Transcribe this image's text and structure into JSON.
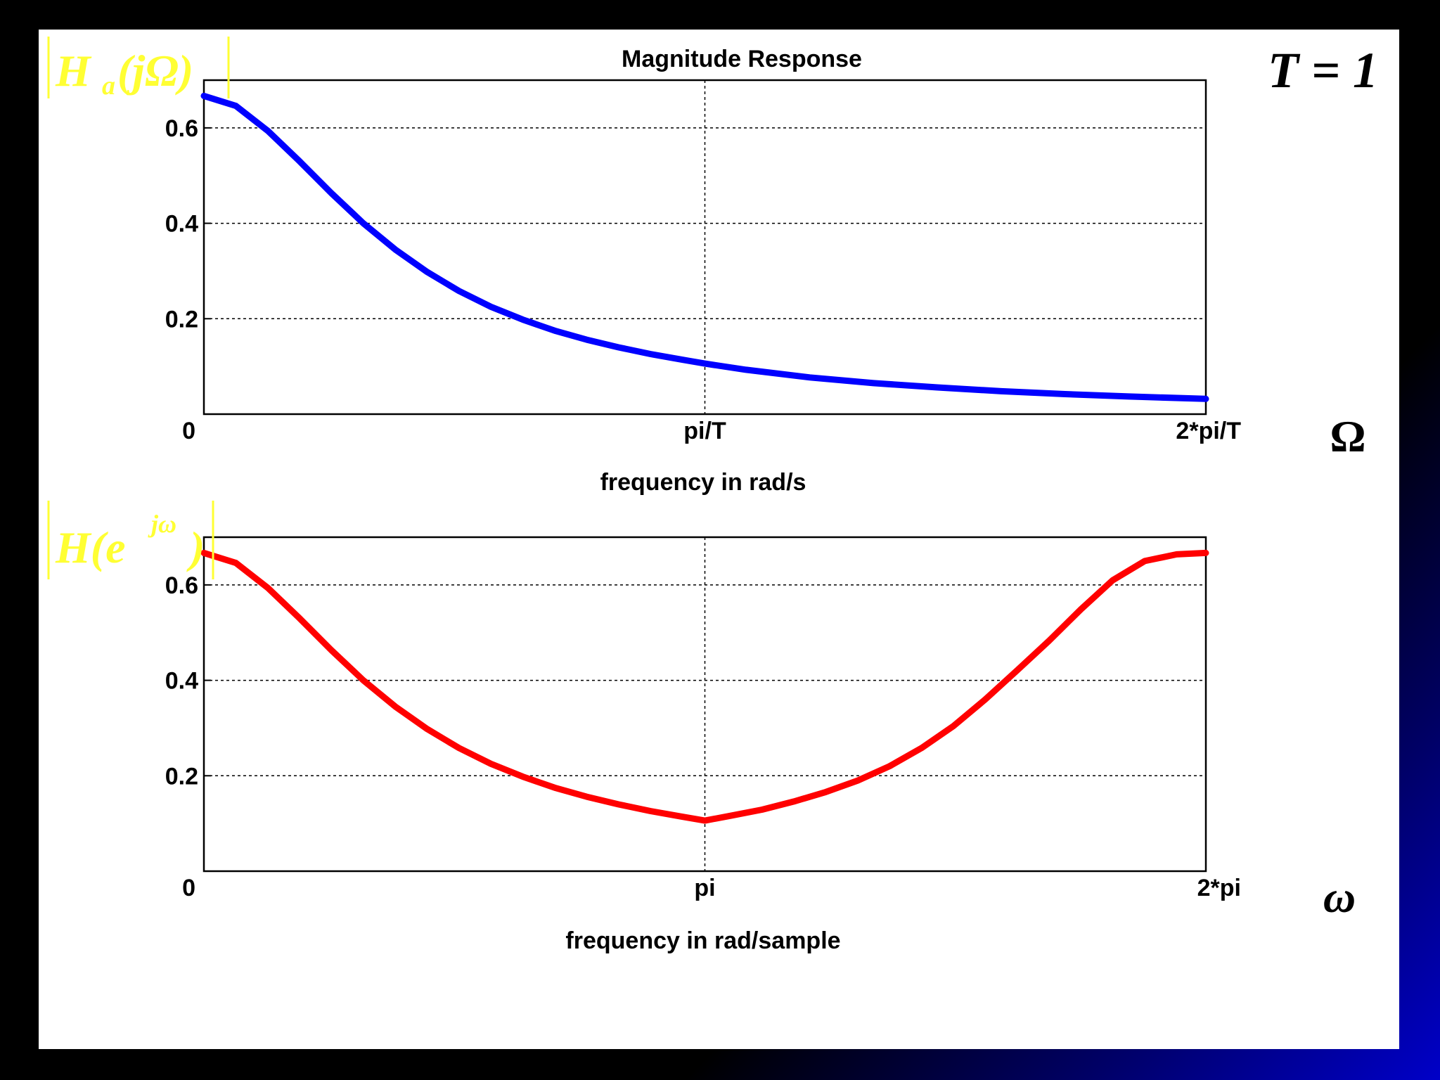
{
  "annotations": {
    "top_ylabel": {
      "main": "H",
      "sub": "a",
      "rest": "(jΩ)"
    },
    "bottom_ylabel": {
      "main": "H(e",
      "sup": "jω",
      "close": ")"
    },
    "t_param": "T = 1",
    "top_var": "Ω",
    "bottom_var": "ω"
  },
  "colors": {
    "top_series": "#0000ff",
    "bottom_series": "#ff0000",
    "annotation": "#ffff33",
    "grid": "#000000"
  },
  "chart_data": [
    {
      "type": "line",
      "title": "Magnitude Response",
      "xlabel": "frequency in rad/s",
      "ylabel": "",
      "xlim": [
        0,
        6.2832
      ],
      "ylim": [
        0,
        0.7
      ],
      "grid": true,
      "xticks": [
        0,
        3.1416,
        6.2832
      ],
      "xtick_labels": [
        "0",
        "pi/T",
        "2*pi/T"
      ],
      "yticks": [
        0,
        0.2,
        0.4,
        0.6
      ],
      "ytick_labels": [
        "0",
        "0.2",
        "0.4",
        "0.6"
      ],
      "series": [
        {
          "x": [
            0,
            0.2,
            0.4,
            0.6,
            0.8,
            1.0,
            1.2,
            1.4,
            1.6,
            1.8,
            2.0,
            2.2,
            2.4,
            2.6,
            2.8,
            3.0,
            3.1416,
            3.4,
            3.8,
            4.2,
            4.6,
            5.0,
            5.4,
            5.8,
            6.2832
          ],
          "y": [
            0.667,
            0.646,
            0.594,
            0.53,
            0.463,
            0.4,
            0.345,
            0.298,
            0.258,
            0.225,
            0.198,
            0.175,
            0.156,
            0.14,
            0.126,
            0.114,
            0.106,
            0.093,
            0.077,
            0.065,
            0.056,
            0.048,
            0.042,
            0.037,
            0.032
          ]
        }
      ]
    },
    {
      "type": "line",
      "title": "",
      "xlabel": "frequency in rad/sample",
      "ylabel": "",
      "xlim": [
        0,
        6.2832
      ],
      "ylim": [
        0,
        0.7
      ],
      "grid": true,
      "xticks": [
        0,
        3.1416,
        6.2832
      ],
      "xtick_labels": [
        "0",
        "pi",
        "2*pi"
      ],
      "yticks": [
        0,
        0.2,
        0.4,
        0.6
      ],
      "ytick_labels": [
        "0",
        "0.2",
        "0.4",
        "0.6"
      ],
      "series": [
        {
          "x": [
            0,
            0.2,
            0.4,
            0.6,
            0.8,
            1.0,
            1.2,
            1.4,
            1.6,
            1.8,
            2.0,
            2.2,
            2.4,
            2.6,
            2.8,
            3.0,
            3.1416,
            3.3,
            3.5,
            3.7,
            3.9,
            4.1,
            4.3,
            4.5,
            4.7,
            4.9,
            5.1,
            5.3,
            5.5,
            5.7,
            5.9,
            6.1,
            6.2832
          ],
          "y": [
            0.667,
            0.646,
            0.594,
            0.53,
            0.463,
            0.4,
            0.345,
            0.298,
            0.258,
            0.225,
            0.198,
            0.175,
            0.156,
            0.14,
            0.126,
            0.114,
            0.106,
            0.116,
            0.129,
            0.146,
            0.166,
            0.19,
            0.22,
            0.258,
            0.304,
            0.36,
            0.421,
            0.483,
            0.549,
            0.61,
            0.65,
            0.664,
            0.667
          ]
        }
      ]
    }
  ]
}
